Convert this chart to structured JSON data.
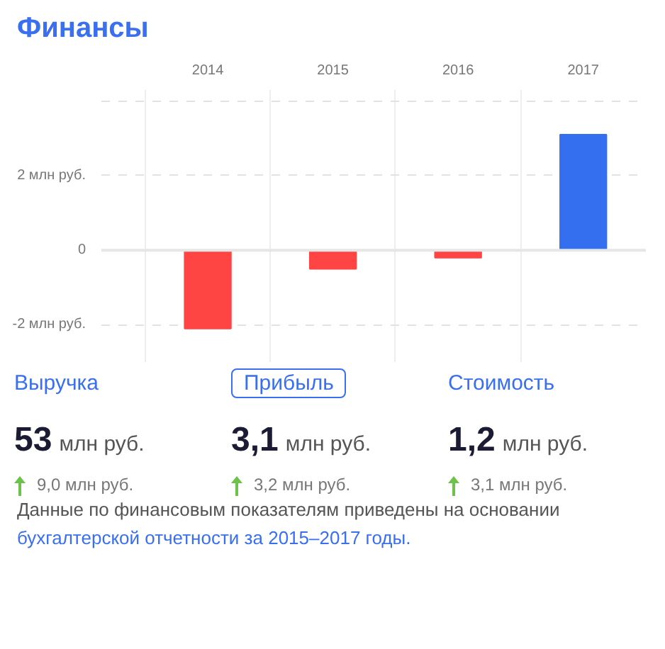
{
  "chart_data": {
    "type": "bar",
    "title": "Финансы",
    "categories": [
      "2014",
      "2015",
      "2016",
      "2017"
    ],
    "values": [
      -2.1,
      -0.5,
      -0.2,
      3.1
    ],
    "colors": [
      "#ff4444",
      "#ff4444",
      "#ff4444",
      "#336fee"
    ],
    "ylim": [
      -3,
      4.3
    ],
    "yticks": [
      {
        "value": -2,
        "label": "-2 млн руб."
      },
      0,
      {
        "value": 2,
        "label": "2 млн руб."
      },
      {
        "value": 4,
        "label": null
      }
    ],
    "grid": true,
    "annotations": [
      "Выручка",
      "Прибыль",
      "Стоимость",
      "53",
      "3,1",
      "1,2",
      "млн руб.",
      "млн руб.",
      "млн руб.",
      "9,0 млн руб.",
      "3,2 млн руб.",
      "3,1 млн руб.",
      "Данные по финансовым показателям приведены на основании",
      "бухгалтерской отчетности за 2015–2017 годы."
    ]
  }
}
